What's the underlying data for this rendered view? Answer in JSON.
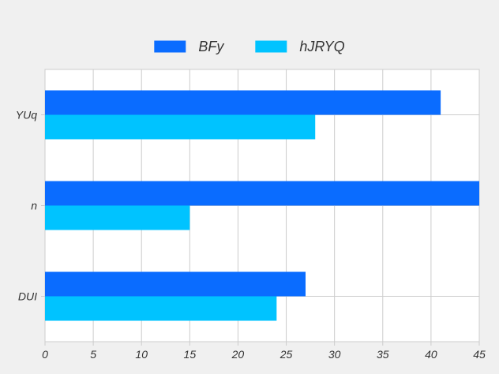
{
  "chart_data": {
    "type": "bar",
    "orientation": "horizontal",
    "categories": [
      "YUq",
      "n",
      "DUI"
    ],
    "series": [
      {
        "name": "BFy",
        "values": [
          41,
          45,
          27
        ],
        "color": "#0a6cff"
      },
      {
        "name": "hJRYQ",
        "values": [
          28,
          15,
          24
        ],
        "color": "#00c3ff"
      }
    ],
    "xlim": [
      0,
      45
    ],
    "xticks": [
      "0",
      "5",
      "10",
      "15",
      "20",
      "25",
      "30",
      "35",
      "40",
      "45"
    ],
    "grid": true,
    "legend_position": "top-center"
  },
  "colors": {
    "background": "#f0f0f0",
    "plot_background": "#ffffff",
    "grid": "#cccccc"
  }
}
